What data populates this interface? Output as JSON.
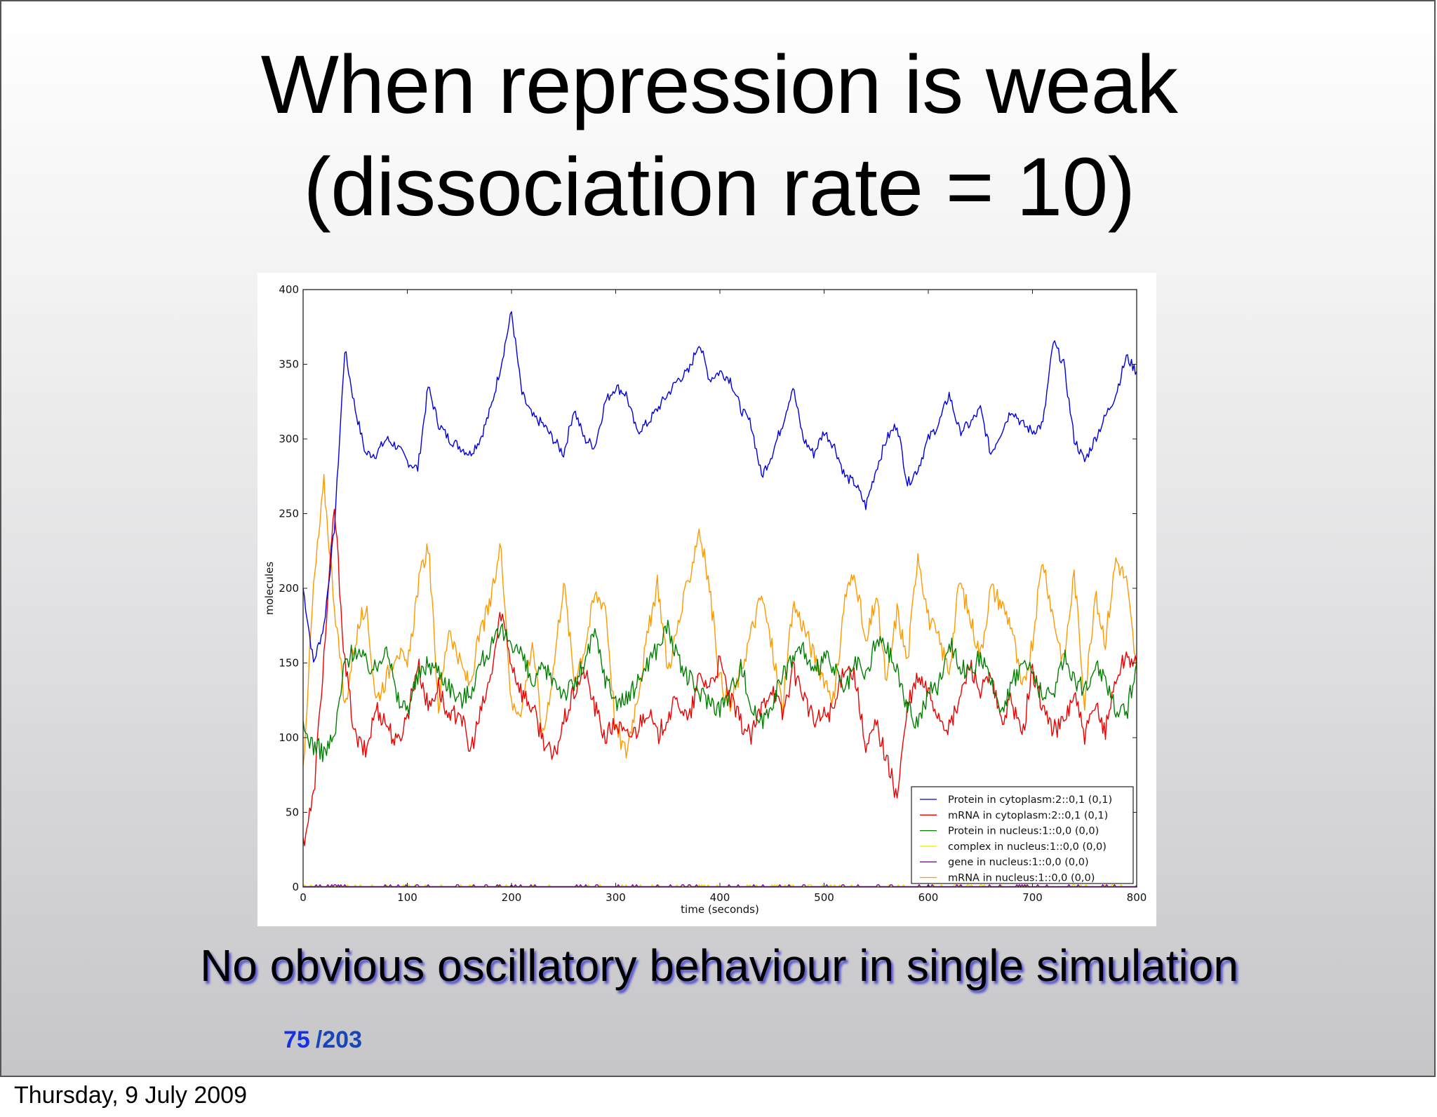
{
  "slide": {
    "title_line1": "When repression is weak",
    "title_line2": "(dissociation rate = 10)",
    "caption": "No obvious oscillatory behaviour in single simulation",
    "page_current": "75",
    "page_total": "/203",
    "footer_date": "Thursday, 9 July 2009",
    "colors": {
      "title_text": "#000000",
      "caption_shadow": "#2828c8",
      "page_current": "#1531e8",
      "page_total": "#1746b8"
    }
  },
  "chart_data": {
    "type": "line",
    "title": "",
    "xlabel": "time (seconds)",
    "ylabel": "molecules",
    "xlim": [
      0,
      800
    ],
    "ylim": [
      0,
      400
    ],
    "xticks": [
      0,
      100,
      200,
      300,
      400,
      500,
      600,
      700,
      800
    ],
    "yticks": [
      0,
      50,
      100,
      150,
      200,
      250,
      300,
      350,
      400
    ],
    "grid": false,
    "legend_position": "lower right",
    "x": [
      0,
      10,
      20,
      30,
      40,
      50,
      60,
      70,
      80,
      90,
      100,
      110,
      120,
      130,
      140,
      150,
      160,
      170,
      180,
      190,
      200,
      210,
      220,
      230,
      240,
      250,
      260,
      270,
      280,
      290,
      300,
      310,
      320,
      330,
      340,
      350,
      360,
      370,
      380,
      390,
      400,
      410,
      420,
      430,
      440,
      450,
      460,
      470,
      480,
      490,
      500,
      510,
      520,
      530,
      540,
      550,
      560,
      570,
      580,
      590,
      600,
      610,
      620,
      630,
      640,
      650,
      660,
      670,
      680,
      690,
      700,
      710,
      720,
      730,
      740,
      750,
      760,
      770,
      780,
      790,
      800
    ],
    "series": [
      {
        "name": "Protein in cytoplasm:2::0,1 (0,1)",
        "color": "#0000dd",
        "values": [
          200,
          150,
          175,
          240,
          360,
          320,
          290,
          290,
          300,
          295,
          285,
          280,
          335,
          310,
          300,
          295,
          290,
          300,
          320,
          350,
          385,
          330,
          315,
          310,
          300,
          290,
          320,
          300,
          295,
          325,
          335,
          330,
          305,
          310,
          320,
          330,
          340,
          345,
          365,
          340,
          345,
          340,
          320,
          310,
          275,
          290,
          310,
          335,
          300,
          290,
          305,
          295,
          275,
          270,
          255,
          280,
          300,
          310,
          270,
          280,
          300,
          310,
          330,
          305,
          310,
          320,
          290,
          305,
          320,
          310,
          305,
          310,
          365,
          350,
          300,
          285,
          300,
          315,
          330,
          355,
          345
        ],
        "style": "solid"
      },
      {
        "name": "mRNA in cytoplasm:2::0,1 (0,1)",
        "color": "#ee0000",
        "values": [
          30,
          60,
          155,
          255,
          150,
          100,
          90,
          120,
          110,
          95,
          115,
          150,
          120,
          135,
          110,
          120,
          90,
          115,
          140,
          185,
          150,
          130,
          120,
          100,
          85,
          110,
          130,
          145,
          120,
          100,
          110,
          100,
          105,
          120,
          100,
          115,
          125,
          110,
          140,
          135,
          150,
          125,
          110,
          100,
          120,
          135,
          115,
          145,
          130,
          110,
          115,
          120,
          150,
          140,
          90,
          110,
          85,
          60,
          120,
          140,
          130,
          115,
          105,
          125,
          150,
          130,
          140,
          110,
          125,
          100,
          145,
          120,
          105,
          110,
          130,
          100,
          120,
          105,
          140,
          155,
          150
        ],
        "style": "solid"
      },
      {
        "name": "Protein in nucleus:1::0,0 (0,0)",
        "color": "#008000",
        "values": [
          105,
          95,
          90,
          100,
          150,
          160,
          150,
          145,
          165,
          125,
          120,
          140,
          150,
          145,
          135,
          125,
          130,
          150,
          160,
          170,
          165,
          155,
          135,
          145,
          140,
          130,
          135,
          150,
          170,
          140,
          125,
          125,
          135,
          150,
          160,
          175,
          150,
          140,
          130,
          125,
          120,
          130,
          150,
          120,
          110,
          125,
          140,
          155,
          160,
          140,
          155,
          145,
          130,
          150,
          140,
          165,
          160,
          145,
          120,
          110,
          130,
          135,
          165,
          150,
          140,
          155,
          135,
          120,
          135,
          150,
          145,
          125,
          130,
          155,
          140,
          130,
          150,
          140,
          120,
          115,
          150
        ],
        "style": "solid"
      },
      {
        "name": "complex in nucleus:1::0,0 (0,0)",
        "color": "#e8e800",
        "values": [
          0,
          1,
          0,
          1,
          0,
          0,
          1,
          0,
          0,
          1,
          0,
          0,
          1,
          0,
          0,
          0,
          1,
          0,
          0,
          1,
          0,
          0,
          1,
          0,
          0,
          1,
          0,
          0,
          1,
          0,
          0,
          1,
          0,
          0,
          1,
          0,
          0,
          1,
          0,
          0,
          1,
          0,
          0,
          1,
          0,
          0,
          1,
          0,
          0,
          1,
          0,
          0,
          1,
          0,
          0,
          1,
          0,
          0,
          1,
          0,
          0,
          1,
          0,
          0,
          1,
          0,
          0,
          1,
          0,
          0,
          1,
          0,
          0,
          1,
          0,
          0,
          1,
          0,
          0,
          1,
          0
        ],
        "style": "solid"
      },
      {
        "name": "gene in nucleus:1::0,0 (0,0)",
        "color": "#8800aa",
        "values": [
          0,
          1,
          0,
          0,
          1,
          0,
          1,
          0,
          0,
          1,
          1,
          0,
          1,
          1,
          0,
          0,
          1,
          0,
          1,
          0,
          0,
          1,
          0,
          1,
          1,
          0,
          1,
          0,
          1,
          1,
          0,
          1,
          1,
          0,
          0,
          0,
          1,
          0,
          0,
          1,
          1,
          1,
          0,
          0,
          0,
          0,
          1,
          1,
          0,
          0,
          0,
          1,
          1,
          0,
          0,
          0,
          0,
          0,
          1,
          1,
          1,
          0,
          1,
          1,
          1,
          0,
          1,
          0,
          0,
          1,
          0,
          1,
          1,
          0,
          1,
          0,
          1,
          1,
          0,
          1,
          1
        ],
        "style": "solid"
      },
      {
        "name": "mRNA in nucleus:1::0,0 (0,0)",
        "color": "#ff9900",
        "values": [
          80,
          200,
          270,
          190,
          120,
          165,
          190,
          125,
          140,
          160,
          145,
          200,
          230,
          120,
          175,
          150,
          135,
          170,
          190,
          230,
          120,
          120,
          165,
          100,
          145,
          205,
          140,
          160,
          195,
          190,
          105,
          90,
          125,
          165,
          205,
          145,
          175,
          205,
          240,
          200,
          140,
          120,
          145,
          170,
          195,
          160,
          120,
          190,
          175,
          155,
          140,
          125,
          195,
          210,
          160,
          195,
          135,
          185,
          150,
          225,
          180,
          165,
          145,
          205,
          180,
          155,
          200,
          190,
          175,
          130,
          165,
          220,
          180,
          150,
          210,
          125,
          195,
          165,
          220,
          205,
          145
        ],
        "style": "solid"
      }
    ]
  }
}
